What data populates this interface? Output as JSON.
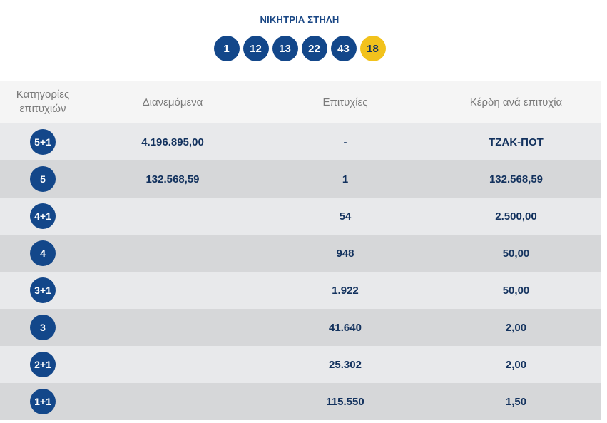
{
  "winning": {
    "title": "ΝΙΚΗΤΡΙΑ ΣΤΗΛΗ",
    "numbers": [
      "1",
      "12",
      "13",
      "22",
      "43"
    ],
    "joker": "18"
  },
  "table": {
    "headers": {
      "category": "Κατηγορίες επιτυχιών",
      "distributed": "Διανεμόμενα",
      "winners": "Επιτυχίες",
      "prize": "Κέρδη ανά επιτυχία"
    },
    "rows": [
      {
        "category": "5+1",
        "distributed": "4.196.895,00",
        "winners": "-",
        "prize": "ΤΖΑΚ-ΠΟΤ"
      },
      {
        "category": "5",
        "distributed": "132.568,59",
        "winners": "1",
        "prize": "132.568,59"
      },
      {
        "category": "4+1",
        "distributed": "",
        "winners": "54",
        "prize": "2.500,00"
      },
      {
        "category": "4",
        "distributed": "",
        "winners": "948",
        "prize": "50,00"
      },
      {
        "category": "3+1",
        "distributed": "",
        "winners": "1.922",
        "prize": "50,00"
      },
      {
        "category": "3",
        "distributed": "",
        "winners": "41.640",
        "prize": "2,00"
      },
      {
        "category": "2+1",
        "distributed": "",
        "winners": "25.302",
        "prize": "2,00"
      },
      {
        "category": "1+1",
        "distributed": "",
        "winners": "115.550",
        "prize": "1,50"
      }
    ]
  },
  "colors": {
    "ball": "#13478a",
    "joker_ball": "#f2c21c",
    "text": "#13325e",
    "row_light": "#e8e9eb",
    "row_dark": "#d6d7d9",
    "header_bg": "#f5f5f5"
  }
}
